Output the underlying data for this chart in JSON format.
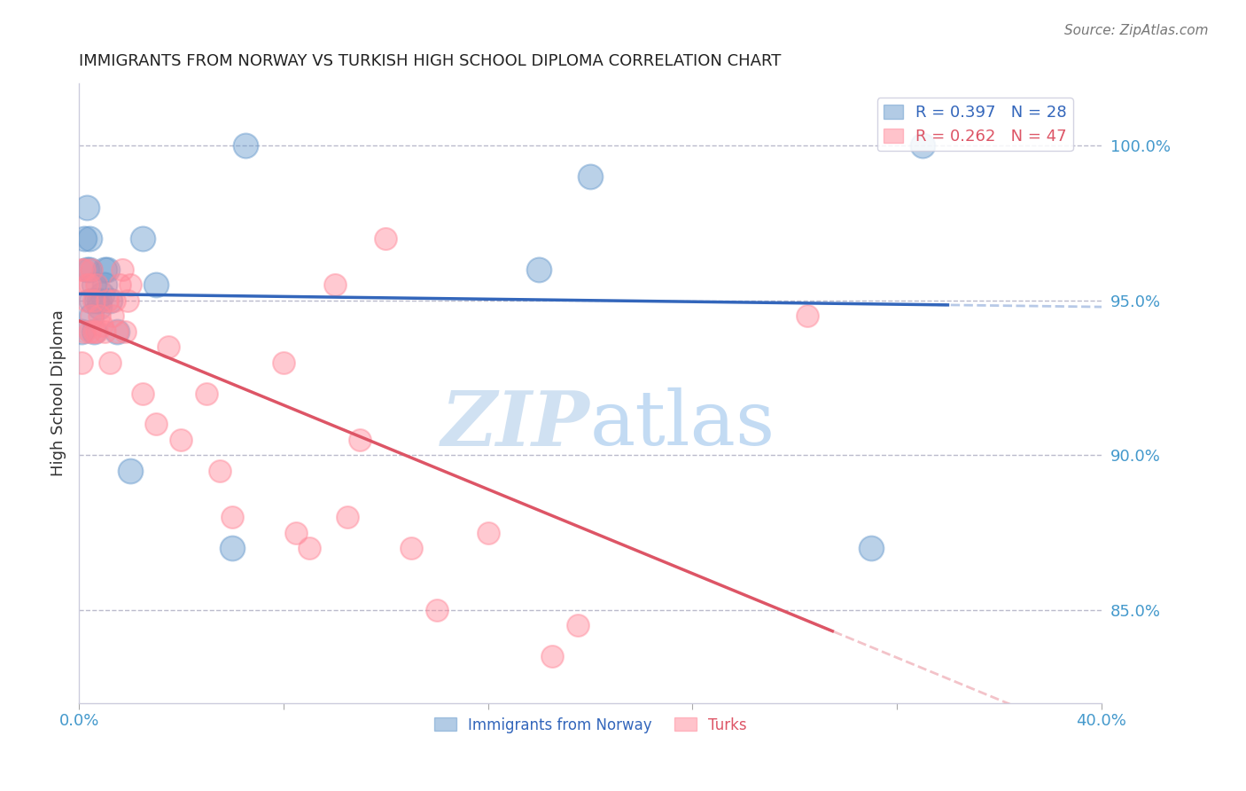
{
  "title": "IMMIGRANTS FROM NORWAY VS TURKISH HIGH SCHOOL DIPLOMA CORRELATION CHART",
  "source": "Source: ZipAtlas.com",
  "ylabel": "High School Diploma",
  "ylabel_right_labels": [
    "100.0%",
    "95.0%",
    "90.0%",
    "85.0%"
  ],
  "ylabel_right_values": [
    1.0,
    0.95,
    0.9,
    0.85
  ],
  "legend_blue_label": "R = 0.397   N = 28",
  "legend_pink_label": "R = 0.262   N = 47",
  "legend_label1": "Immigrants from Norway",
  "legend_label2": "Turks",
  "blue_color": "#6699CC",
  "pink_color": "#FF8899",
  "blue_line_color": "#3366BB",
  "pink_line_color": "#DD5566",
  "watermark_zip": "ZIP",
  "watermark_atlas": "atlas",
  "xlim": [
    0.0,
    0.4
  ],
  "ylim": [
    0.82,
    1.02
  ],
  "norway_x": [
    0.001,
    0.002,
    0.003,
    0.003,
    0.004,
    0.004,
    0.005,
    0.005,
    0.006,
    0.006,
    0.007,
    0.008,
    0.008,
    0.009,
    0.01,
    0.01,
    0.011,
    0.012,
    0.015,
    0.02,
    0.025,
    0.03,
    0.06,
    0.065,
    0.18,
    0.2,
    0.31,
    0.33
  ],
  "norway_y": [
    0.94,
    0.97,
    0.98,
    0.96,
    0.97,
    0.96,
    0.95,
    0.945,
    0.94,
    0.955,
    0.95,
    0.948,
    0.95,
    0.952,
    0.96,
    0.955,
    0.96,
    0.95,
    0.94,
    0.895,
    0.97,
    0.955,
    0.87,
    1.0,
    0.96,
    0.99,
    0.87,
    1.0
  ],
  "turks_x": [
    0.001,
    0.001,
    0.002,
    0.002,
    0.003,
    0.003,
    0.004,
    0.004,
    0.005,
    0.005,
    0.006,
    0.006,
    0.007,
    0.007,
    0.008,
    0.009,
    0.01,
    0.011,
    0.012,
    0.013,
    0.014,
    0.015,
    0.016,
    0.017,
    0.018,
    0.019,
    0.02,
    0.025,
    0.03,
    0.035,
    0.04,
    0.05,
    0.055,
    0.06,
    0.08,
    0.085,
    0.09,
    0.1,
    0.105,
    0.11,
    0.12,
    0.13,
    0.14,
    0.16,
    0.185,
    0.195,
    0.285
  ],
  "turks_y": [
    0.93,
    0.96,
    0.94,
    0.96,
    0.95,
    0.955,
    0.94,
    0.955,
    0.945,
    0.96,
    0.94,
    0.95,
    0.955,
    0.94,
    0.945,
    0.942,
    0.94,
    0.95,
    0.93,
    0.945,
    0.95,
    0.94,
    0.955,
    0.96,
    0.94,
    0.95,
    0.955,
    0.92,
    0.91,
    0.935,
    0.905,
    0.92,
    0.895,
    0.88,
    0.93,
    0.875,
    0.87,
    0.955,
    0.88,
    0.905,
    0.97,
    0.87,
    0.85,
    0.875,
    0.835,
    0.845,
    0.945
  ]
}
